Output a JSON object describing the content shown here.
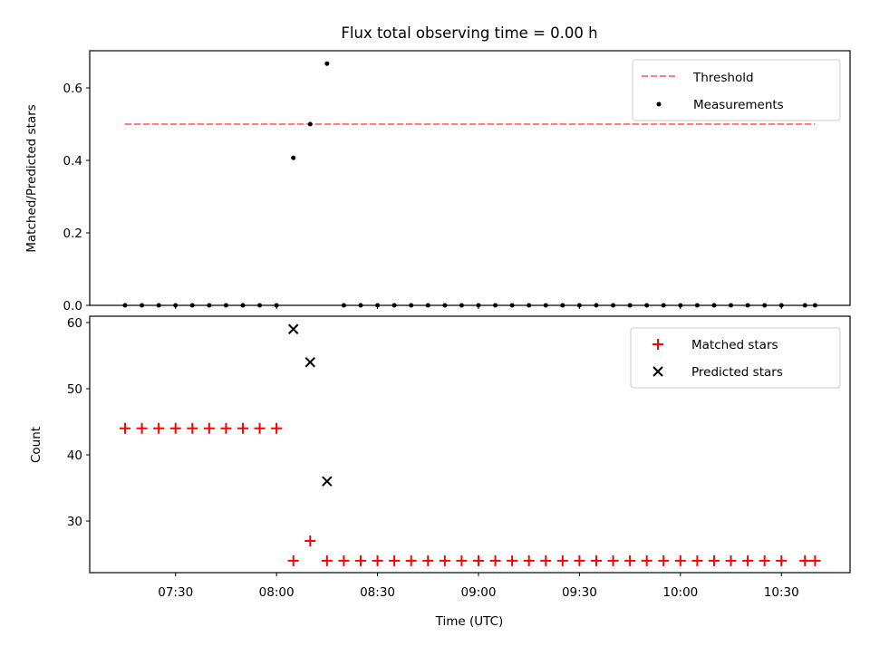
{
  "chart_data": [
    {
      "type": "scatter",
      "title": "Flux total observing time = 0.00 h",
      "ylabel": "Matched/Predicted stars",
      "xlabel": "",
      "ylim": [
        0,
        0.7025
      ],
      "xlim": [
        "07:04.5",
        "10:50.4"
      ],
      "yticks": [
        "0.0",
        "0.2",
        "0.4",
        "0.6"
      ],
      "ytick_values": [
        0,
        0.2,
        0.4,
        0.6
      ],
      "legend_position": "top-right",
      "threshold": {
        "name": "Threshold",
        "value": 0.5,
        "x_start": "07:15",
        "x_end": "10:40",
        "color": "#ff7f7f"
      },
      "series": [
        {
          "name": "Measurements",
          "color": "#000000",
          "x": [
            "07:15",
            "07:20",
            "07:25",
            "07:30",
            "07:35",
            "07:40",
            "07:45",
            "07:50",
            "07:55",
            "08:00",
            "08:05",
            "08:10",
            "08:15",
            "08:20",
            "08:25",
            "08:30",
            "08:35",
            "08:40",
            "08:45",
            "08:50",
            "08:55",
            "09:00",
            "09:05",
            "09:10",
            "09:15",
            "09:20",
            "09:25",
            "09:30",
            "09:35",
            "09:40",
            "09:45",
            "09:50",
            "09:55",
            "10:00",
            "10:05",
            "10:10",
            "10:15",
            "10:20",
            "10:25",
            "10:30",
            "10:37",
            "10:40"
          ],
          "y": [
            0,
            0,
            0,
            0,
            0,
            0,
            0,
            0,
            0,
            0,
            0.407,
            0.5,
            0.667,
            0,
            0,
            0,
            0,
            0,
            0,
            0,
            0,
            0,
            0,
            0,
            0,
            0,
            0,
            0,
            0,
            0,
            0,
            0,
            0,
            0,
            0,
            0,
            0,
            0,
            0,
            0,
            0,
            0
          ]
        }
      ]
    },
    {
      "type": "scatter",
      "title": "",
      "ylabel": "Count",
      "xlabel": "Time (UTC)",
      "ylim": [
        22.2,
        60.95
      ],
      "xlim": [
        "07:04.5",
        "10:50.4"
      ],
      "yticks": [
        "30",
        "40",
        "50",
        "60"
      ],
      "ytick_values": [
        30,
        40,
        50,
        60
      ],
      "xticks": [
        "07:30",
        "08:00",
        "08:30",
        "09:00",
        "09:30",
        "10:00",
        "10:30"
      ],
      "legend_position": "top-right",
      "series": [
        {
          "name": "Matched stars",
          "marker": "+",
          "color": "#ff0000",
          "x": [
            "07:15",
            "07:20",
            "07:25",
            "07:30",
            "07:35",
            "07:40",
            "07:45",
            "07:50",
            "07:55",
            "08:00",
            "08:05",
            "08:10",
            "08:15",
            "08:20",
            "08:25",
            "08:30",
            "08:35",
            "08:40",
            "08:45",
            "08:50",
            "08:55",
            "09:00",
            "09:05",
            "09:10",
            "09:15",
            "09:20",
            "09:25",
            "09:30",
            "09:35",
            "09:40",
            "09:45",
            "09:50",
            "09:55",
            "10:00",
            "10:05",
            "10:10",
            "10:15",
            "10:20",
            "10:25",
            "10:30",
            "10:37",
            "10:40"
          ],
          "y": [
            44,
            44,
            44,
            44,
            44,
            44,
            44,
            44,
            44,
            44,
            24,
            27,
            24,
            24,
            24,
            24,
            24,
            24,
            24,
            24,
            24,
            24,
            24,
            24,
            24,
            24,
            24,
            24,
            24,
            24,
            24,
            24,
            24,
            24,
            24,
            24,
            24,
            24,
            24,
            24,
            24,
            24
          ]
        },
        {
          "name": "Predicted stars",
          "marker": "x",
          "color": "#000000",
          "x": [
            "08:05",
            "08:10",
            "08:15"
          ],
          "y": [
            59,
            54,
            36
          ]
        }
      ]
    }
  ]
}
